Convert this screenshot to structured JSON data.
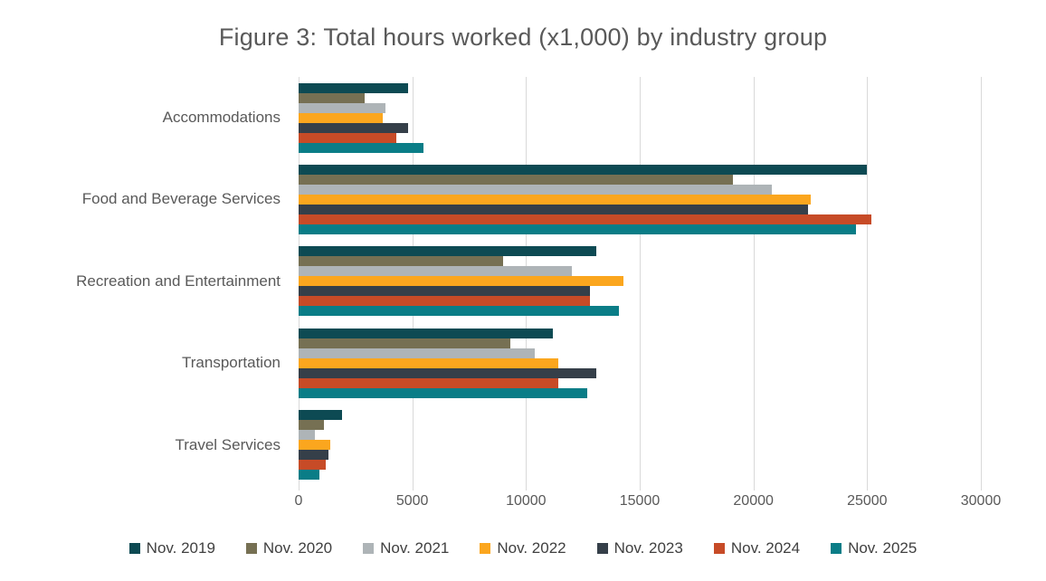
{
  "title": "Figure 3: Total hours worked (x1,000) by industry group",
  "chart_data": {
    "type": "bar",
    "orientation": "horizontal",
    "title": "Figure 3: Total hours worked (x1,000) by industry group",
    "xlabel": "",
    "ylabel": "",
    "xlim": [
      0,
      30000
    ],
    "xticks": [
      0,
      5000,
      10000,
      15000,
      20000,
      25000,
      30000
    ],
    "grid": true,
    "legend_position": "bottom",
    "categories": [
      "Accommodations",
      "Food and Beverage Services",
      "Recreation and Entertainment",
      "Transportation",
      "Travel Services"
    ],
    "series": [
      {
        "name": "Nov. 2019",
        "color": "#0d4a53",
        "values": [
          4800,
          25000,
          13100,
          11200,
          1900
        ]
      },
      {
        "name": "Nov. 2020",
        "color": "#767053",
        "values": [
          2900,
          19100,
          9000,
          9300,
          1100
        ]
      },
      {
        "name": "Nov. 2021",
        "color": "#aeb4b7",
        "values": [
          3800,
          20800,
          12000,
          10400,
          700
        ]
      },
      {
        "name": "Nov. 2022",
        "color": "#fba61e",
        "values": [
          3700,
          22500,
          14300,
          11400,
          1400
        ]
      },
      {
        "name": "Nov. 2023",
        "color": "#353f49",
        "values": [
          4800,
          22400,
          12800,
          13100,
          1300
        ]
      },
      {
        "name": "Nov. 2024",
        "color": "#c74b27",
        "values": [
          4300,
          25200,
          12800,
          11400,
          1200
        ]
      },
      {
        "name": "Nov. 2025",
        "color": "#0a7d87",
        "values": [
          5500,
          24500,
          14100,
          12700,
          900
        ]
      }
    ]
  },
  "colors": {
    "title_text": "#595959",
    "axis_text": "#595959",
    "legend_text": "#404040",
    "gridline": "#d9d9d9",
    "background": "#ffffff"
  }
}
